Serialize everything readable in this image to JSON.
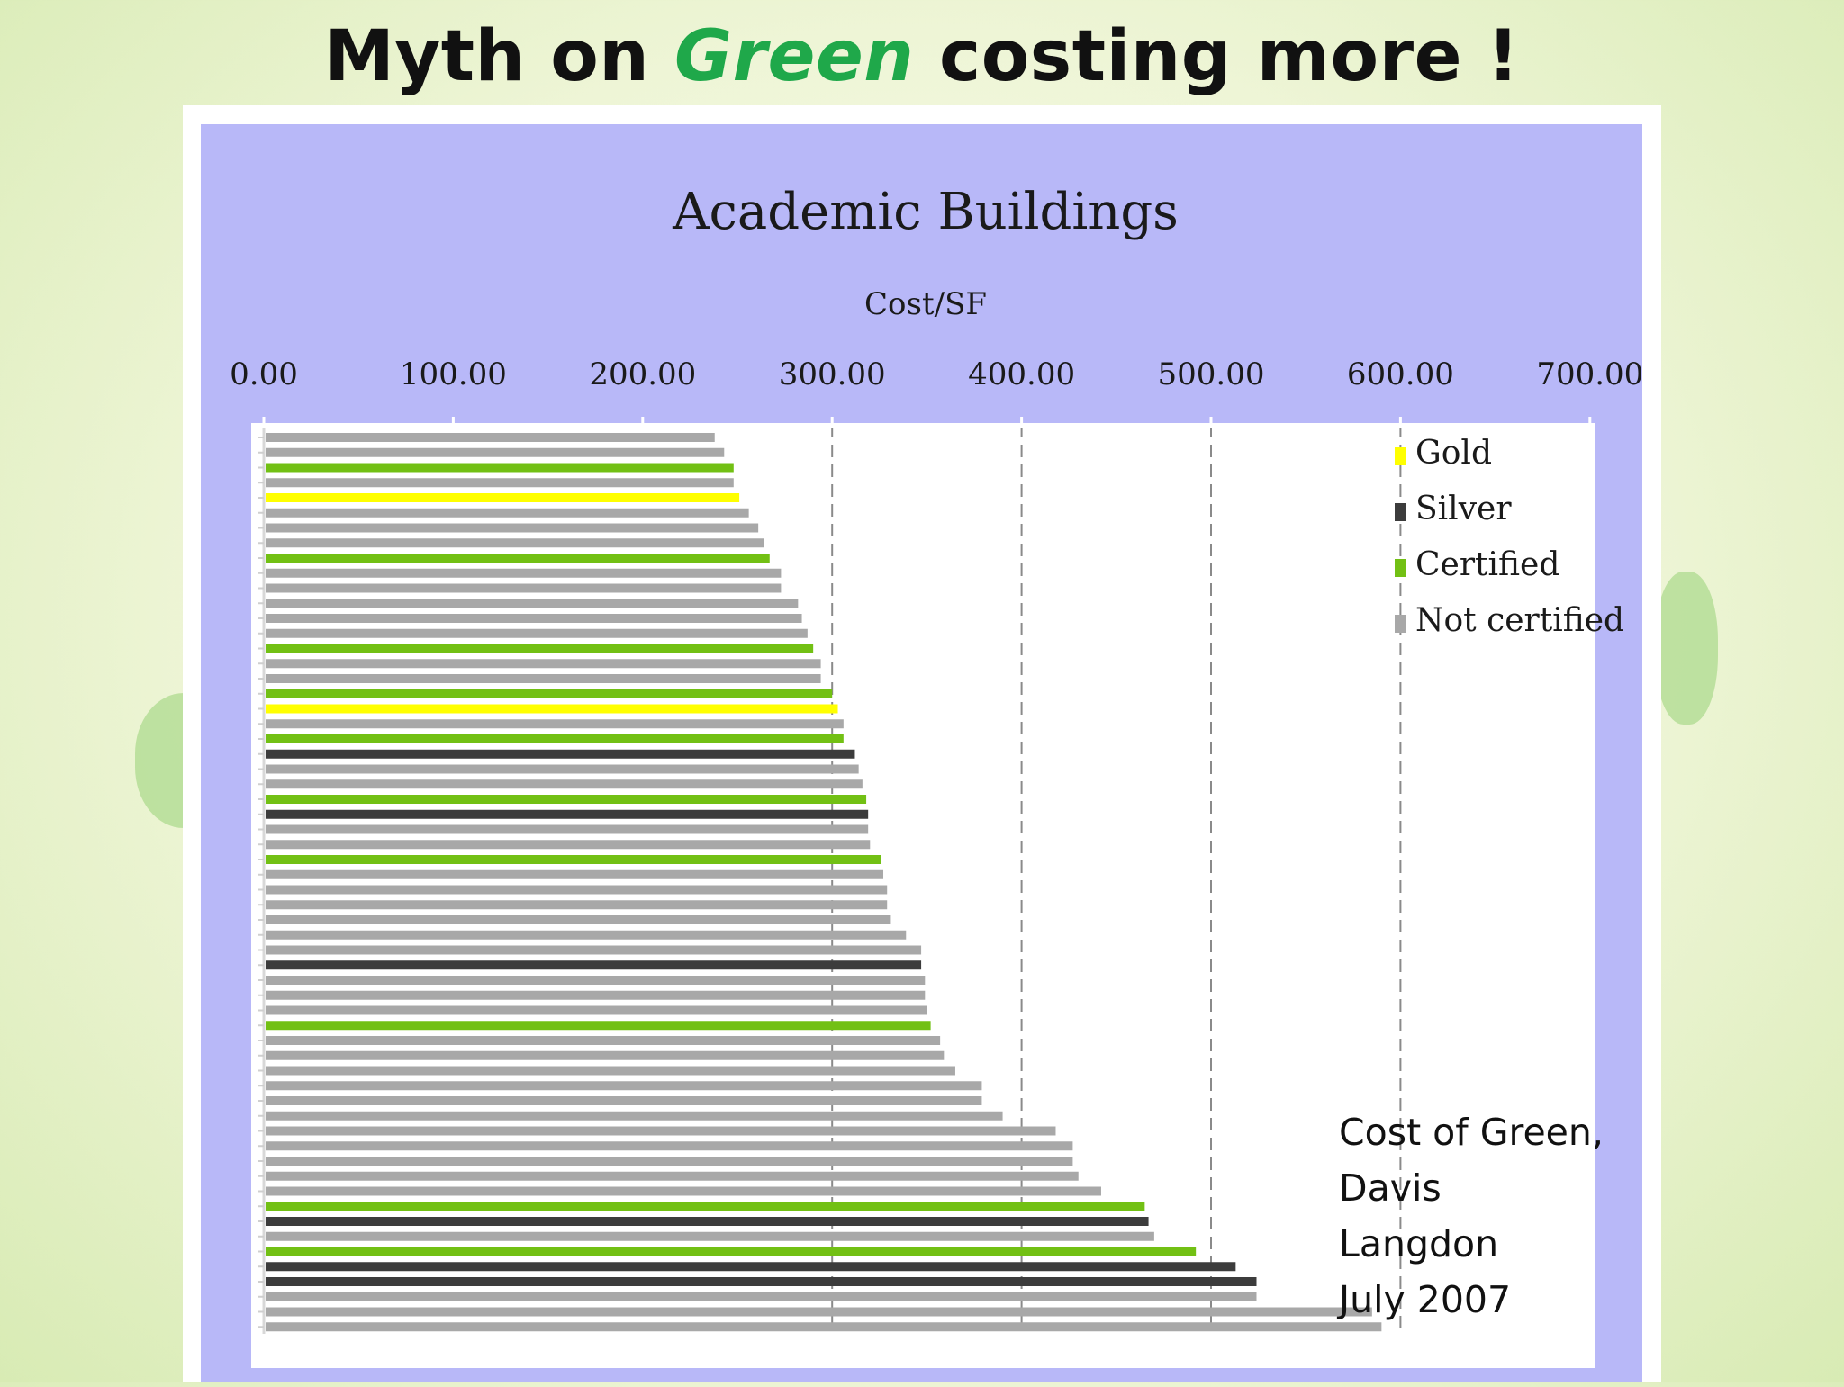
{
  "slide": {
    "title_before": "Myth on ",
    "title_highlight": "Green",
    "title_after": " costing more !"
  },
  "source": {
    "line1": "Cost of Green,",
    "line2": "Davis Langdon",
    "line3": "July 2007"
  },
  "colors": {
    "plot_background": "#b8b8f8",
    "gold": "#ffff00",
    "silver": "#3c3c3c",
    "certified": "#72c014",
    "not_certified": "#a8a8a8"
  },
  "chart_data": {
    "type": "bar",
    "orientation": "horizontal",
    "title": "Academic Buildings",
    "xlabel": "Cost/SF",
    "x_ticks": [
      "0.00",
      "100.00",
      "200.00",
      "300.00",
      "400.00",
      "500.00",
      "600.00",
      "700.00"
    ],
    "xlim": [
      0,
      700
    ],
    "grid": "dashed vertical lines at 300, 400, 500, 600",
    "legend_position": "top-right",
    "legend": [
      {
        "key": "gold",
        "label": "Gold"
      },
      {
        "key": "silver",
        "label": "Silver"
      },
      {
        "key": "certified",
        "label": "Certified"
      },
      {
        "key": "not_certified",
        "label": "Not certified"
      }
    ],
    "bars": [
      {
        "value": 238,
        "category": "not_certified"
      },
      {
        "value": 243,
        "category": "not_certified"
      },
      {
        "value": 248,
        "category": "certified"
      },
      {
        "value": 248,
        "category": "not_certified"
      },
      {
        "value": 251,
        "category": "gold"
      },
      {
        "value": 256,
        "category": "not_certified"
      },
      {
        "value": 261,
        "category": "not_certified"
      },
      {
        "value": 264,
        "category": "not_certified"
      },
      {
        "value": 267,
        "category": "certified"
      },
      {
        "value": 273,
        "category": "not_certified"
      },
      {
        "value": 273,
        "category": "not_certified"
      },
      {
        "value": 282,
        "category": "not_certified"
      },
      {
        "value": 284,
        "category": "not_certified"
      },
      {
        "value": 287,
        "category": "not_certified"
      },
      {
        "value": 290,
        "category": "certified"
      },
      {
        "value": 294,
        "category": "not_certified"
      },
      {
        "value": 294,
        "category": "not_certified"
      },
      {
        "value": 300,
        "category": "certified"
      },
      {
        "value": 303,
        "category": "gold"
      },
      {
        "value": 306,
        "category": "not_certified"
      },
      {
        "value": 306,
        "category": "certified"
      },
      {
        "value": 312,
        "category": "silver"
      },
      {
        "value": 314,
        "category": "not_certified"
      },
      {
        "value": 316,
        "category": "not_certified"
      },
      {
        "value": 318,
        "category": "certified"
      },
      {
        "value": 319,
        "category": "silver"
      },
      {
        "value": 319,
        "category": "not_certified"
      },
      {
        "value": 320,
        "category": "not_certified"
      },
      {
        "value": 326,
        "category": "certified"
      },
      {
        "value": 327,
        "category": "not_certified"
      },
      {
        "value": 329,
        "category": "not_certified"
      },
      {
        "value": 329,
        "category": "not_certified"
      },
      {
        "value": 331,
        "category": "not_certified"
      },
      {
        "value": 339,
        "category": "not_certified"
      },
      {
        "value": 347,
        "category": "not_certified"
      },
      {
        "value": 347,
        "category": "silver"
      },
      {
        "value": 349,
        "category": "not_certified"
      },
      {
        "value": 349,
        "category": "not_certified"
      },
      {
        "value": 350,
        "category": "not_certified"
      },
      {
        "value": 352,
        "category": "certified"
      },
      {
        "value": 357,
        "category": "not_certified"
      },
      {
        "value": 359,
        "category": "not_certified"
      },
      {
        "value": 365,
        "category": "not_certified"
      },
      {
        "value": 379,
        "category": "not_certified"
      },
      {
        "value": 379,
        "category": "not_certified"
      },
      {
        "value": 390,
        "category": "not_certified"
      },
      {
        "value": 418,
        "category": "not_certified"
      },
      {
        "value": 427,
        "category": "not_certified"
      },
      {
        "value": 427,
        "category": "not_certified"
      },
      {
        "value": 430,
        "category": "not_certified"
      },
      {
        "value": 442,
        "category": "not_certified"
      },
      {
        "value": 465,
        "category": "certified"
      },
      {
        "value": 467,
        "category": "silver"
      },
      {
        "value": 470,
        "category": "not_certified"
      },
      {
        "value": 492,
        "category": "certified"
      },
      {
        "value": 513,
        "category": "silver"
      },
      {
        "value": 524,
        "category": "silver"
      },
      {
        "value": 524,
        "category": "not_certified"
      },
      {
        "value": 585,
        "category": "not_certified"
      },
      {
        "value": 590,
        "category": "not_certified"
      }
    ]
  }
}
